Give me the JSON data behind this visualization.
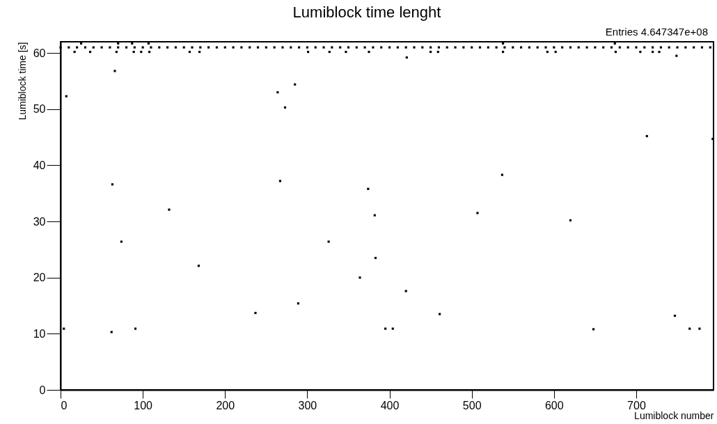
{
  "chart_data": {
    "type": "scatter",
    "title": "Lumiblock time lenght",
    "xlabel": "Lumiblock number",
    "ylabel": "Lumiblock time [s]",
    "annotations": [
      "Entries    4.647347e+08"
    ],
    "marker": "square",
    "xlim": [
      0,
      794
    ],
    "ylim": [
      0,
      62
    ],
    "xticks": [
      0,
      100,
      200,
      300,
      400,
      500,
      600,
      700
    ],
    "yticks": [
      0,
      10,
      20,
      30,
      40,
      50,
      60
    ],
    "series": [
      {
        "color": "#000000",
        "x": [
          0,
          10,
          20,
          30,
          40,
          50,
          60,
          70,
          80,
          90,
          100,
          110,
          120,
          130,
          140,
          150,
          160,
          170,
          180,
          190,
          200,
          210,
          220,
          230,
          240,
          250,
          260,
          270,
          280,
          290,
          300,
          310,
          320,
          330,
          340,
          350,
          360,
          370,
          380,
          390,
          400,
          410,
          420,
          430,
          440,
          450,
          460,
          470,
          480,
          490,
          500,
          510,
          520,
          530,
          540,
          550,
          560,
          570,
          580,
          590,
          600,
          610,
          620,
          630,
          640,
          650,
          660,
          670,
          680,
          690,
          700,
          710,
          720,
          730,
          740,
          750,
          760,
          770,
          780,
          790
        ],
        "values": [
          61,
          61,
          61,
          61,
          61,
          61,
          61,
          61,
          61,
          61,
          61,
          61,
          61,
          61,
          61,
          61,
          61,
          61,
          61,
          61,
          61,
          61,
          61,
          61,
          61,
          61,
          61,
          61,
          61,
          61,
          61,
          61,
          61,
          61,
          61,
          61,
          61,
          61,
          61,
          61,
          61,
          61,
          61,
          61,
          61,
          61,
          61,
          61,
          61,
          61,
          61,
          61,
          61,
          61,
          61,
          61,
          61,
          61,
          61,
          61,
          61,
          61,
          61,
          61,
          61,
          61,
          61,
          61,
          61,
          61,
          61,
          61,
          61,
          61,
          61,
          61,
          61,
          61,
          61,
          61
        ]
      },
      {
        "color": "#000000",
        "x": [
          17,
          36,
          68,
          89,
          98,
          108,
          157,
          169,
          301,
          327,
          347,
          375,
          450,
          459,
          538,
          592,
          602,
          675,
          705,
          720,
          728,
          25,
          70,
          87,
          107,
          538,
          674
        ],
        "values": [
          60.2,
          60.2,
          60.2,
          60.2,
          60.2,
          60.2,
          60.2,
          60.2,
          60.2,
          60.2,
          60.2,
          60.2,
          60.2,
          60.2,
          60.2,
          60.2,
          60.2,
          60.2,
          60.2,
          60.2,
          60.2,
          61.7,
          61.7,
          61.7,
          61.7,
          61.7,
          61.7
        ]
      },
      {
        "color": "#000000",
        "x": [
          7,
          66,
          264,
          285,
          273,
          63,
          267,
          374,
          382,
          132,
          4,
          62,
          91,
          74,
          168,
          237,
          289,
          326,
          364,
          383,
          395,
          404,
          420,
          461,
          507,
          620,
          648,
          747,
          765,
          777,
          713,
          537,
          421,
          793,
          749
        ],
        "values": [
          52.3,
          56.8,
          53.0,
          54.4,
          50.3,
          36.6,
          37.2,
          35.8,
          31.1,
          32.1,
          10.9,
          10.3,
          10.9,
          26.4,
          22.1,
          13.7,
          15.4,
          26.4,
          20.0,
          23.5,
          10.9,
          10.9,
          17.6,
          13.5,
          31.5,
          30.2,
          10.8,
          13.2,
          10.9,
          10.9,
          45.2,
          38.3,
          59.2,
          44.7,
          59.5
        ]
      }
    ]
  }
}
